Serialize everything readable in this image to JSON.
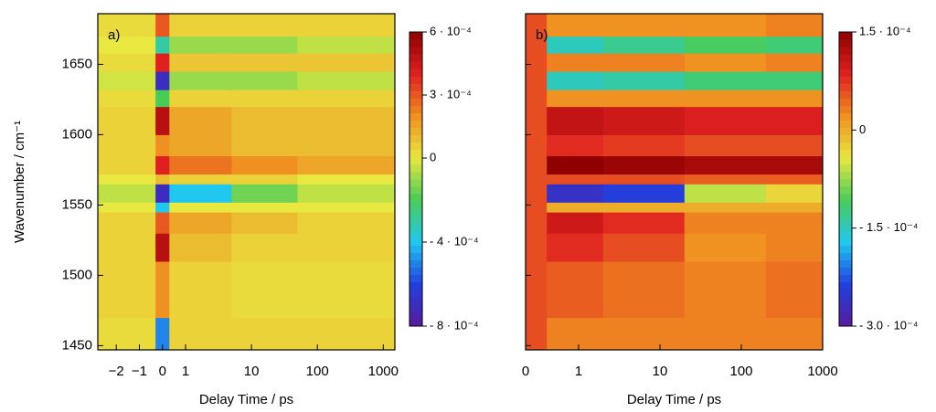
{
  "chart_data": [
    {
      "type": "heatmap",
      "panel_label": "a)",
      "xlabel": "Delay Time / ps",
      "ylabel": "Wavenumber / cm⁻¹",
      "xlim": [
        -2.8,
        1500
      ],
      "ylim": [
        1447,
        1686
      ],
      "xticks": [
        {
          "value": -2,
          "label": "−2"
        },
        {
          "value": -1,
          "label": "−1"
        },
        0,
        1,
        10,
        100,
        1000
      ],
      "yticks": [
        1450,
        1500,
        1550,
        1600,
        1650
      ],
      "show_ytick_labels": true,
      "zlim": [
        -0.0008,
        0.0006
      ],
      "zticks": [
        {
          "value": 0.0006,
          "label": "6 · 10⁻⁴"
        },
        {
          "value": 0.0003,
          "label": "3 · 10⁻⁴"
        },
        0,
        {
          "value": -0.0004,
          "label": "- 4 · 10⁻⁴"
        },
        {
          "value": -0.0008,
          "label": "- 8 · 10⁻⁴"
        }
      ],
      "colormap": [
        "#5a1a9c",
        "#2040e0",
        "#20c8f0",
        "#48cc58",
        "#e8e840",
        "#f09020",
        "#e02020",
        "#900000"
      ],
      "x_edges": [
        -2.8,
        -0.3,
        0.3,
        5,
        50,
        1500
      ],
      "y_edges": [
        1447,
        1470,
        1510,
        1530,
        1545,
        1552,
        1565,
        1572,
        1585,
        1600,
        1620,
        1632,
        1645,
        1658,
        1670,
        1686
      ],
      "z": [
        [
          3e-05,
          -0.0005,
          5e-05,
          5e-05,
          5e-05
        ],
        [
          5e-05,
          0.0002,
          5e-05,
          3e-05,
          3e-05
        ],
        [
          5e-05,
          0.0005,
          0.0001,
          5e-05,
          5e-05
        ],
        [
          5e-05,
          0.0003,
          0.00015,
          0.0001,
          5e-05
        ],
        [
          0,
          -0.0004,
          0,
          0,
          0
        ],
        [
          -5e-05,
          -0.0007,
          -0.0004,
          -0.00015,
          -5e-05
        ],
        [
          0,
          0.0001,
          5e-05,
          5e-05,
          0
        ],
        [
          5e-05,
          0.0004,
          0.00025,
          0.0002,
          0.00015
        ],
        [
          5e-05,
          0.0002,
          0.00015,
          0.0001,
          0.0001
        ],
        [
          5e-05,
          0.0005,
          0.00015,
          0.0001,
          0.0001
        ],
        [
          3e-05,
          -0.0002,
          5e-05,
          5e-05,
          5e-05
        ],
        [
          -3e-05,
          -0.0007,
          -0.0001,
          -0.0001,
          -5e-05
        ],
        [
          3e-05,
          0.0004,
          8e-05,
          8e-05,
          8e-05
        ],
        [
          0,
          -0.0003,
          -0.0001,
          -0.0001,
          -5e-05
        ],
        [
          3e-05,
          0.0003,
          5e-05,
          5e-05,
          5e-05
        ]
      ]
    },
    {
      "type": "heatmap",
      "panel_label": "b)",
      "xlabel": "Delay Time / ps",
      "xlim": [
        0,
        1000
      ],
      "ylim": [
        1447,
        1686
      ],
      "xticks": [
        0,
        1,
        10,
        100,
        1000
      ],
      "yticks": [
        1450,
        1500,
        1550,
        1600,
        1650
      ],
      "show_ytick_labels": false,
      "zlim": [
        -0.0003,
        0.00015
      ],
      "zticks": [
        {
          "value": 0.00015,
          "label": "1.5 · 10⁻⁴"
        },
        0,
        {
          "value": -0.00015,
          "label": "- 1.5 · 10⁻⁴"
        },
        {
          "value": -0.0003,
          "label": "- 3.0 · 10⁻⁴"
        }
      ],
      "colormap": [
        "#5a1a9c",
        "#2040e0",
        "#20c8f0",
        "#48cc58",
        "#e8e840",
        "#f09020",
        "#e02020",
        "#900000"
      ],
      "x_edges": [
        0,
        0.4,
        2,
        20,
        200,
        1000
      ],
      "y_edges": [
        1447,
        1470,
        1510,
        1530,
        1545,
        1552,
        1565,
        1572,
        1585,
        1600,
        1620,
        1632,
        1645,
        1658,
        1670,
        1686
      ],
      "z": [
        [
          6e-05,
          3e-05,
          3e-05,
          3e-05,
          3e-05
        ],
        [
          6e-05,
          5e-05,
          4e-05,
          3e-05,
          4e-05
        ],
        [
          6e-05,
          8e-05,
          6e-05,
          2e-05,
          3e-05
        ],
        [
          6e-05,
          0.0001,
          8e-05,
          3e-05,
          3e-05
        ],
        [
          6e-05,
          0,
          0,
          0,
          0
        ],
        [
          6e-05,
          -0.00026,
          -0.00024,
          -6e-05,
          -3e-05
        ],
        [
          6e-05,
          6e-05,
          6e-05,
          5e-05,
          5e-05
        ],
        [
          6e-05,
          0.00015,
          0.00014,
          0.00013,
          0.00013
        ],
        [
          6e-05,
          8e-05,
          7e-05,
          6e-05,
          6e-05
        ],
        [
          6e-05,
          0.00011,
          0.0001,
          9e-05,
          9e-05
        ],
        [
          6e-05,
          2e-05,
          2e-05,
          2e-05,
          2e-05
        ],
        [
          6e-05,
          -0.00015,
          -0.00014,
          -0.00012,
          -0.00012
        ],
        [
          6e-05,
          3e-05,
          3e-05,
          2e-05,
          3e-05
        ],
        [
          6e-05,
          -0.00015,
          -0.00013,
          -0.00011,
          -0.00012
        ],
        [
          6e-05,
          2e-05,
          2e-05,
          2e-05,
          3e-05
        ]
      ]
    }
  ]
}
